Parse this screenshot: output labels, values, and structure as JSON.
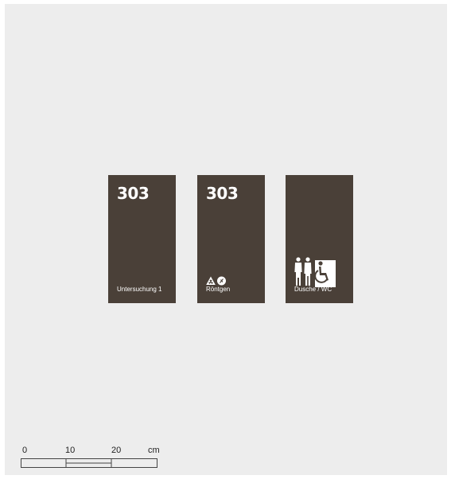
{
  "signs": [
    {
      "number": "303",
      "label": "Untersuchung 1"
    },
    {
      "number": "303",
      "label": "Röntgen",
      "icons": [
        "radiation-warning-icon",
        "no-pacemaker-icon"
      ]
    },
    {
      "number": "",
      "label": "Dusche / WC",
      "icons": [
        "woman-icon",
        "man-icon",
        "wheelchair-icon"
      ]
    }
  ],
  "scale": {
    "ticks": [
      "0",
      "10",
      "20"
    ],
    "unit": "cm"
  },
  "colors": {
    "sign_background": "#4a4038",
    "sign_text": "#ffffff",
    "canvas": "#ededed"
  }
}
